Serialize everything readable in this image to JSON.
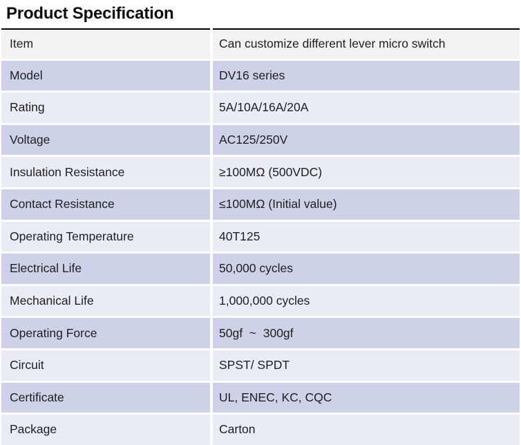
{
  "page": {
    "title": "Product Specification"
  },
  "theme": {
    "header_row_bg": "#f2f2f2",
    "band_dark_bg": "#cdd2e8",
    "band_light_bg": "#e9ebf5",
    "table_top_border": "#000000",
    "text_color": "#1f1f1f",
    "page_bg": "#ffffff"
  },
  "table": {
    "rows": [
      {
        "label": "Item",
        "value": "Can customize different lever micro switch"
      },
      {
        "label": "Model",
        "value": "DV16 series"
      },
      {
        "label": "Rating",
        "value": "5A/10A/16A/20A"
      },
      {
        "label": "Voltage",
        "value": "AC125/250V"
      },
      {
        "label": "Insulation Resistance",
        "value": "≥100MΩ (500VDC)"
      },
      {
        "label": "Contact Resistance",
        "value": "≤100MΩ (Initial value)"
      },
      {
        "label": "Operating Temperature",
        "value": "40T125"
      },
      {
        "label": "Electrical Life",
        "value": "50,000 cycles"
      },
      {
        "label": "Mechanical Life",
        "value": "1,000,000 cycles"
      },
      {
        "label": "Operating Force",
        "value": "50gf  ~  300gf"
      },
      {
        "label": "Circuit",
        "value": "SPST/ SPDT"
      },
      {
        "label": "Certificate",
        "value": "UL, ENEC, KC, CQC"
      },
      {
        "label": "Package",
        "value": "Carton"
      }
    ]
  }
}
